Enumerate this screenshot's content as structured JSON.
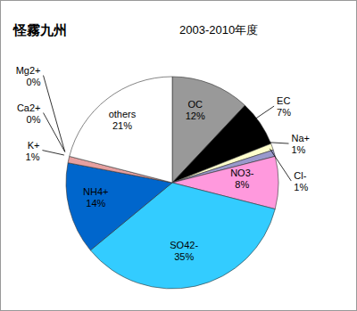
{
  "chart_data": {
    "type": "pie",
    "title": "怪霧九州",
    "subtitle": "2003-2010年度",
    "categories": [
      "OC",
      "EC",
      "Na+",
      "Cl-",
      "NO3-",
      "SO42-",
      "NH4+",
      "K+",
      "Ca2+",
      "Mg2+",
      "others"
    ],
    "values": [
      12,
      7,
      1,
      1,
      8,
      35,
      14,
      1,
      0,
      0,
      21
    ],
    "value_labels": [
      "12%",
      "7%",
      "1%",
      "1%",
      "8%",
      "35%",
      "14%",
      "1%",
      "0%",
      "0%",
      "21%"
    ],
    "colors": [
      "#999999",
      "#000000",
      "#ffffcc",
      "#9999cc",
      "#ff99dd",
      "#33ccff",
      "#0066cc",
      "#e6a0a0",
      "#cc9999",
      "#cccccc",
      "#ffffff"
    ],
    "data_labels": true
  }
}
